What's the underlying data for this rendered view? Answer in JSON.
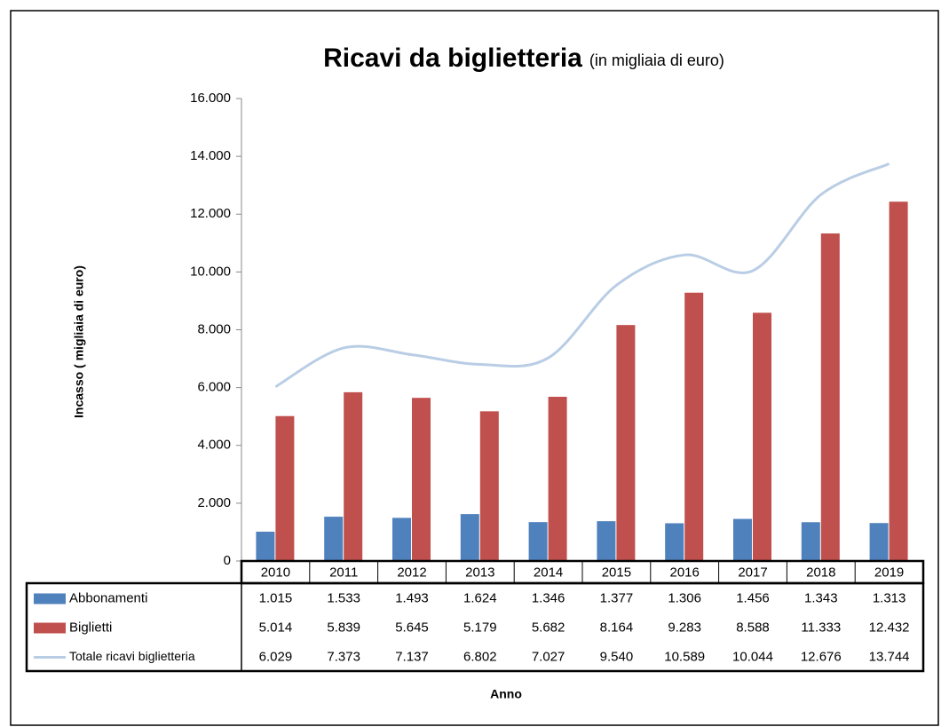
{
  "chart_data": {
    "type": "bar",
    "title": "Ricavi da biglietteria",
    "subtitle": "(in migliaia di euro)",
    "x_label": "Anno",
    "y_label": "Incasso ( migliaia di euro)",
    "categories": [
      "2010",
      "2011",
      "2012",
      "2013",
      "2014",
      "2015",
      "2016",
      "2017",
      "2018",
      "2019"
    ],
    "series": [
      {
        "name": "Abbonamenti",
        "type": "bar",
        "color": "#4f81bd",
        "values": [
          1015,
          1533,
          1493,
          1624,
          1346,
          1377,
          1306,
          1456,
          1343,
          1313
        ],
        "value_labels": [
          "1.015",
          "1.533",
          "1.493",
          "1.624",
          "1.346",
          "1.377",
          "1.306",
          "1.456",
          "1.343",
          "1.313"
        ]
      },
      {
        "name": "Biglietti",
        "type": "bar",
        "color": "#c0504d",
        "values": [
          5014,
          5839,
          5645,
          5179,
          5682,
          8164,
          9283,
          8588,
          11333,
          12432
        ],
        "value_labels": [
          "5.014",
          "5.839",
          "5.645",
          "5.179",
          "5.682",
          "8.164",
          "9.283",
          "8.588",
          "11.333",
          "12.432"
        ]
      },
      {
        "name": "Totale  ricavi biglietteria",
        "type": "line",
        "color": "#b9cde5",
        "values": [
          6029,
          7373,
          7137,
          6802,
          7027,
          9540,
          10589,
          10044,
          12676,
          13744
        ],
        "value_labels": [
          "6.029",
          "7.373",
          "7.137",
          "6.802",
          "7.027",
          "9.540",
          "10.589",
          "10.044",
          "12.676",
          "13.744"
        ]
      }
    ],
    "ylim": [
      0,
      16000
    ],
    "yticks": [
      0,
      {
        "value": 2000,
        "label": "2.000"
      },
      {
        "value": 4000,
        "label": "4.000"
      },
      {
        "value": 6000,
        "label": "6.000"
      },
      {
        "value": 8000,
        "label": "8.000"
      },
      {
        "value": 10000,
        "label": "10.000"
      },
      {
        "value": 12000,
        "label": "12.000"
      },
      {
        "value": 14000,
        "label": "14.000"
      },
      {
        "value": 16000,
        "label": "16.000"
      }
    ],
    "grid": false
  }
}
